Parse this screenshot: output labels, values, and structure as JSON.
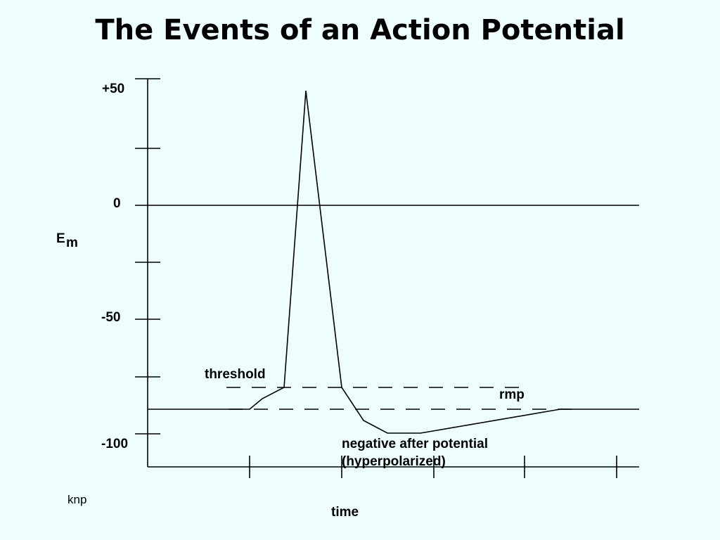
{
  "title": "The Events of an Action Potential",
  "y_axis": {
    "label_main": "E",
    "label_sub": "m",
    "ticks": [
      {
        "value": 50,
        "label": "+50"
      },
      {
        "value": 0,
        "label": "0"
      },
      {
        "value": -50,
        "label": "-50"
      },
      {
        "value": -100,
        "label": "-100"
      }
    ]
  },
  "x_axis": {
    "label": "time"
  },
  "annotations": {
    "threshold": "threshold",
    "rmp": "rmp",
    "nap_line1": "negative after potential",
    "nap_line2": "(hyperpolarized)"
  },
  "credit": "knp",
  "colors": {
    "background": "#eefefe",
    "ink": "#000000"
  }
}
